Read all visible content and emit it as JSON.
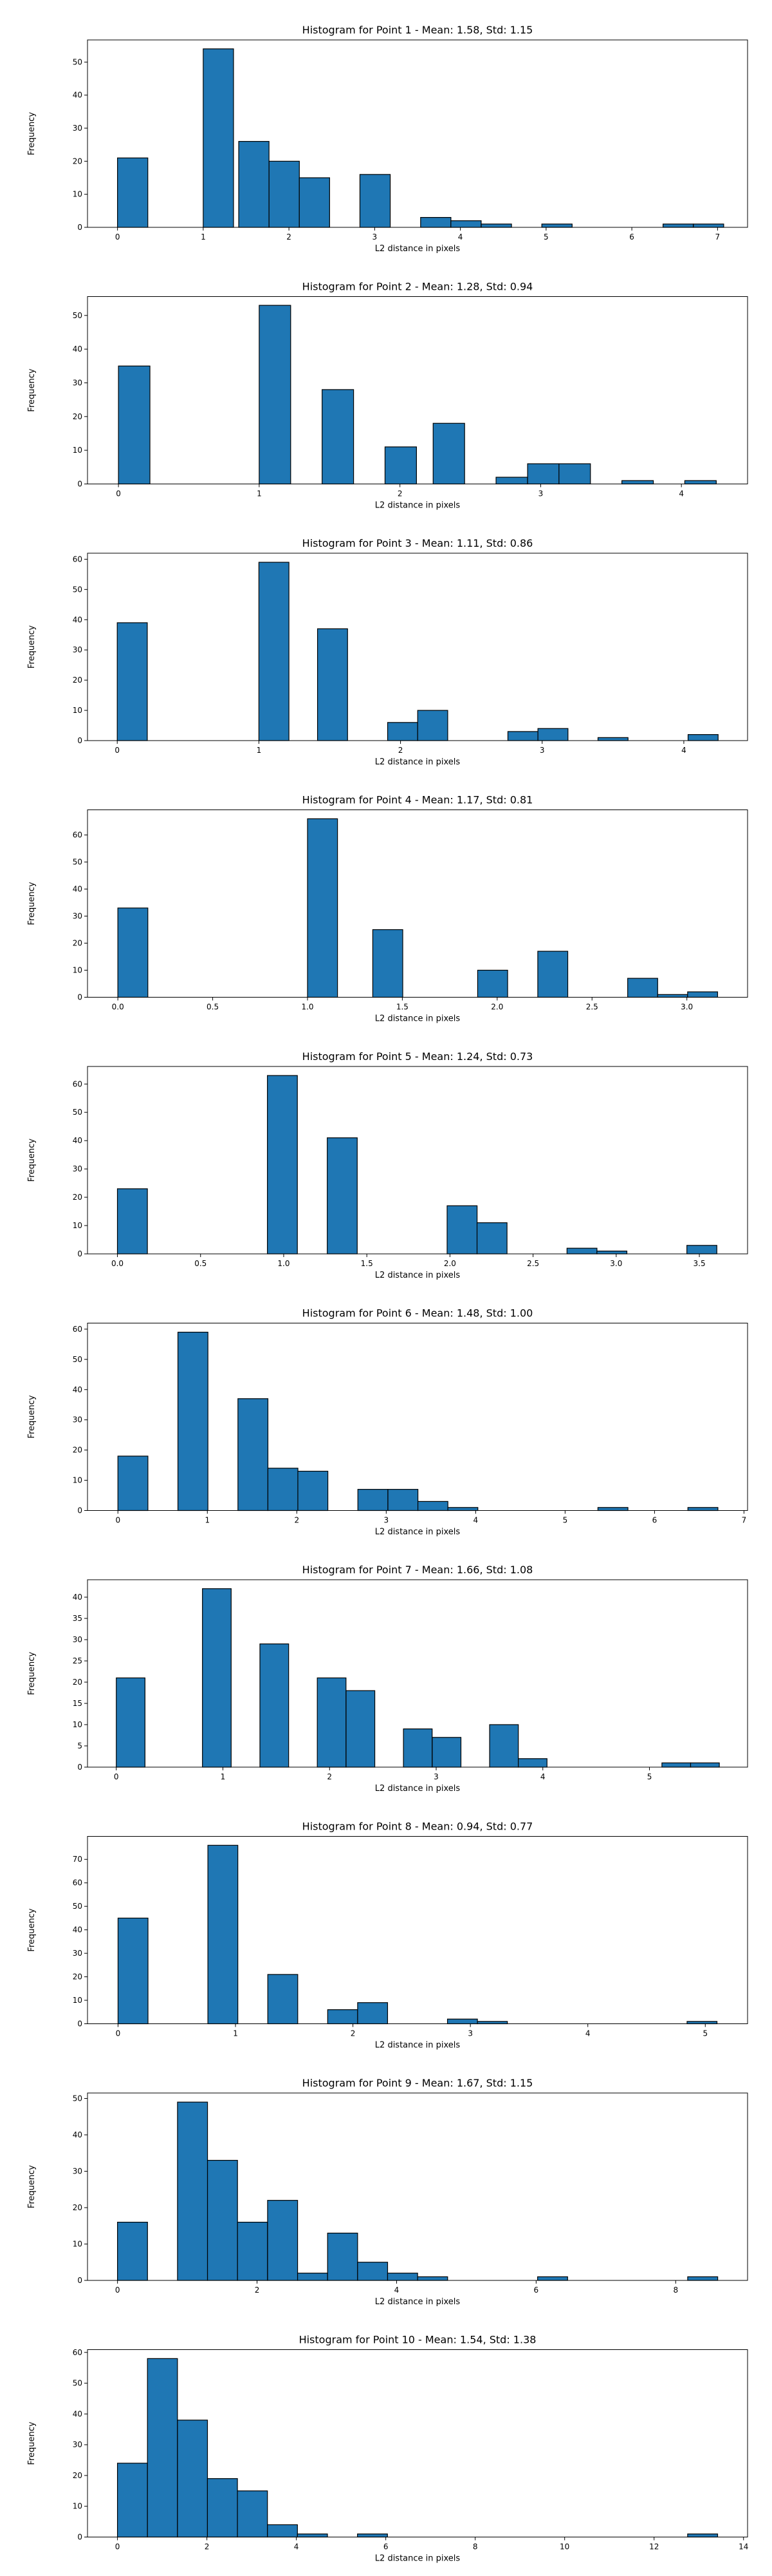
{
  "chart_data": [
    {
      "type": "bar",
      "title": "Histogram for Point 1 - Mean: 1.58, Std: 1.15",
      "xlabel": "L2 distance in pixels",
      "ylabel": "Frequency",
      "bin_width": 0.3535,
      "bins": [
        [
          0,
          21
        ],
        [
          1.0,
          54
        ],
        [
          1.414,
          26
        ],
        [
          1.768,
          20
        ],
        [
          2.121,
          15
        ],
        [
          2.828,
          16
        ],
        [
          3.536,
          3
        ],
        [
          3.889,
          2
        ],
        [
          4.243,
          1
        ],
        [
          4.95,
          1
        ],
        [
          6.364,
          1
        ],
        [
          6.718,
          1
        ]
      ],
      "xlim": [
        -0.35,
        7.35
      ],
      "ylim": [
        0,
        56.7
      ],
      "xticks": [
        0,
        1,
        2,
        3,
        4,
        5,
        6,
        7
      ],
      "xtick_labels": [
        "0",
        "1",
        "2",
        "3",
        "4",
        "5",
        "6",
        "7"
      ],
      "yticks": [
        0,
        10,
        20,
        30,
        40,
        50
      ],
      "ytick_labels": [
        "0",
        "10",
        "20",
        "30",
        "40",
        "50"
      ]
    },
    {
      "type": "bar",
      "title": "Histogram for Point 2 - Mean: 1.28, Std: 0.94",
      "xlabel": "L2 distance in pixels",
      "ylabel": "Frequency",
      "bin_width": 0.2236,
      "bins": [
        [
          0,
          35
        ],
        [
          1.0,
          53
        ],
        [
          1.447,
          28
        ],
        [
          1.894,
          11
        ],
        [
          2.236,
          18
        ],
        [
          2.683,
          2
        ],
        [
          2.907,
          6
        ],
        [
          3.13,
          6
        ],
        [
          3.577,
          1
        ],
        [
          4.024,
          1
        ]
      ],
      "xlim": [
        -0.22,
        4.47
      ],
      "ylim": [
        0,
        55.6
      ],
      "xticks": [
        0,
        1,
        2,
        3,
        4
      ],
      "xtick_labels": [
        "0",
        "1",
        "2",
        "3",
        "4"
      ],
      "yticks": [
        0,
        10,
        20,
        30,
        40,
        50
      ],
      "ytick_labels": [
        "0",
        "10",
        "20",
        "30",
        "40",
        "50"
      ]
    },
    {
      "type": "bar",
      "title": "Histogram for Point 3 - Mean: 1.11, Std: 0.86",
      "xlabel": "L2 distance in pixels",
      "ylabel": "Frequency",
      "bin_width": 0.2121,
      "bins": [
        [
          0,
          39
        ],
        [
          1.0,
          59
        ],
        [
          1.414,
          37
        ],
        [
          1.909,
          6
        ],
        [
          2.121,
          10
        ],
        [
          2.758,
          3
        ],
        [
          2.97,
          4
        ],
        [
          3.394,
          1
        ],
        [
          4.03,
          2
        ]
      ],
      "xlim": [
        -0.21,
        4.45
      ],
      "ylim": [
        0,
        62
      ],
      "xticks": [
        0,
        1,
        2,
        3,
        4
      ],
      "xtick_labels": [
        "0",
        "1",
        "2",
        "3",
        "4"
      ],
      "yticks": [
        0,
        10,
        20,
        30,
        40,
        50,
        60
      ],
      "ytick_labels": [
        "0",
        "10",
        "20",
        "30",
        "40",
        "50",
        "60"
      ]
    },
    {
      "type": "bar",
      "title": "Histogram for Point 4 - Mean: 1.17, Std: 0.81",
      "xlabel": "L2 distance in pixels",
      "ylabel": "Frequency",
      "bin_width": 0.1581,
      "bins": [
        [
          0,
          33
        ],
        [
          1.0,
          66
        ],
        [
          1.344,
          25
        ],
        [
          1.897,
          10
        ],
        [
          2.214,
          17
        ],
        [
          2.688,
          7
        ],
        [
          2.846,
          1
        ],
        [
          3.004,
          2
        ]
      ],
      "xlim": [
        -0.16,
        3.32
      ],
      "ylim": [
        0,
        69.3
      ],
      "xticks": [
        0.0,
        0.5,
        1.0,
        1.5,
        2.0,
        2.5,
        3.0
      ],
      "xtick_labels": [
        "0.0",
        "0.5",
        "1.0",
        "1.5",
        "2.0",
        "2.5",
        "3.0"
      ],
      "yticks": [
        0,
        10,
        20,
        30,
        40,
        50,
        60
      ],
      "ytick_labels": [
        "0",
        "10",
        "20",
        "30",
        "40",
        "50",
        "60"
      ]
    },
    {
      "type": "bar",
      "title": "Histogram for Point 5 - Mean: 1.24, Std: 0.73",
      "xlabel": "L2 distance in pixels",
      "ylabel": "Frequency",
      "bin_width": 0.1803,
      "bins": [
        [
          0,
          23
        ],
        [
          0.902,
          63
        ],
        [
          1.262,
          41
        ],
        [
          1.983,
          17
        ],
        [
          2.163,
          11
        ],
        [
          2.704,
          2
        ],
        [
          2.884,
          1
        ],
        [
          3.425,
          3
        ]
      ],
      "xlim": [
        -0.18,
        3.79
      ],
      "ylim": [
        0,
        66.2
      ],
      "xticks": [
        0.0,
        0.5,
        1.0,
        1.5,
        2.0,
        2.5,
        3.0,
        3.5
      ],
      "xtick_labels": [
        "0.0",
        "0.5",
        "1.0",
        "1.5",
        "2.0",
        "2.5",
        "3.0",
        "3.5"
      ],
      "yticks": [
        0,
        10,
        20,
        30,
        40,
        50,
        60
      ],
      "ytick_labels": [
        "0",
        "10",
        "20",
        "30",
        "40",
        "50",
        "60"
      ]
    },
    {
      "type": "bar",
      "title": "Histogram for Point 6 - Mean: 1.48, Std: 1.00",
      "xlabel": "L2 distance in pixels",
      "ylabel": "Frequency",
      "bin_width": 0.3354,
      "bins": [
        [
          0,
          18
        ],
        [
          0.671,
          59
        ],
        [
          1.342,
          37
        ],
        [
          1.677,
          14
        ],
        [
          2.012,
          13
        ],
        [
          2.683,
          7
        ],
        [
          3.019,
          7
        ],
        [
          3.354,
          3
        ],
        [
          3.689,
          1
        ],
        [
          5.367,
          1
        ],
        [
          6.373,
          1
        ]
      ],
      "xlim": [
        -0.34,
        7.04
      ],
      "ylim": [
        0,
        62
      ],
      "xticks": [
        0,
        1,
        2,
        3,
        4,
        5,
        6,
        7
      ],
      "xtick_labels": [
        "0",
        "1",
        "2",
        "3",
        "4",
        "5",
        "6",
        "7"
      ],
      "yticks": [
        0,
        10,
        20,
        30,
        40,
        50,
        60
      ],
      "ytick_labels": [
        "0",
        "10",
        "20",
        "30",
        "40",
        "50",
        "60"
      ]
    },
    {
      "type": "bar",
      "title": "Histogram for Point 7 - Mean: 1.66, Std: 1.08",
      "xlabel": "L2 distance in pixels",
      "ylabel": "Frequency",
      "bin_width": 0.2693,
      "bins": [
        [
          0,
          21
        ],
        [
          0.808,
          42
        ],
        [
          1.347,
          29
        ],
        [
          1.885,
          21
        ],
        [
          2.155,
          18
        ],
        [
          2.693,
          9
        ],
        [
          2.963,
          7
        ],
        [
          3.501,
          10
        ],
        [
          3.77,
          2
        ],
        [
          5.117,
          1
        ],
        [
          5.386,
          1
        ]
      ],
      "xlim": [
        -0.27,
        5.92
      ],
      "ylim": [
        0,
        44.1
      ],
      "xticks": [
        0,
        1,
        2,
        3,
        4,
        5
      ],
      "xtick_labels": [
        "0",
        "1",
        "2",
        "3",
        "4",
        "5"
      ],
      "yticks": [
        0,
        5,
        10,
        15,
        20,
        25,
        30,
        35,
        40
      ],
      "ytick_labels": [
        "0",
        "5",
        "10",
        "15",
        "20",
        "25",
        "30",
        "35",
        "40"
      ]
    },
    {
      "type": "bar",
      "title": "Histogram for Point 8 - Mean: 0.94, Std: 0.77",
      "xlabel": "L2 distance in pixels",
      "ylabel": "Frequency",
      "bin_width": 0.255,
      "bins": [
        [
          0,
          45
        ],
        [
          0.765,
          76
        ],
        [
          1.275,
          21
        ],
        [
          1.785,
          6
        ],
        [
          2.04,
          9
        ],
        [
          2.805,
          2
        ],
        [
          3.06,
          1
        ],
        [
          4.845,
          1
        ]
      ],
      "xlim": [
        -0.26,
        5.36
      ],
      "ylim": [
        0,
        79.8
      ],
      "xticks": [
        0,
        1,
        2,
        3,
        4,
        5
      ],
      "xtick_labels": [
        "0",
        "1",
        "2",
        "3",
        "4",
        "5"
      ],
      "yticks": [
        0,
        10,
        20,
        30,
        40,
        50,
        60,
        70
      ],
      "ytick_labels": [
        "0",
        "10",
        "20",
        "30",
        "40",
        "50",
        "60",
        "70"
      ]
    },
    {
      "type": "bar",
      "title": "Histogram for Point 9 - Mean: 1.67, Std: 1.15",
      "xlabel": "L2 distance in pixels",
      "ylabel": "Frequency",
      "bin_width": 0.4301,
      "bins": [
        [
          0,
          16
        ],
        [
          0.86,
          49
        ],
        [
          1.29,
          33
        ],
        [
          1.72,
          16
        ],
        [
          2.151,
          22
        ],
        [
          2.581,
          2
        ],
        [
          3.011,
          13
        ],
        [
          3.441,
          5
        ],
        [
          3.871,
          2
        ],
        [
          4.301,
          1
        ],
        [
          6.021,
          1
        ],
        [
          8.172,
          1
        ]
      ],
      "xlim": [
        -0.43,
        9.03
      ],
      "ylim": [
        0,
        51.5
      ],
      "xticks": [
        0,
        2,
        4,
        6,
        8
      ],
      "xtick_labels": [
        "0",
        "2",
        "4",
        "6",
        "8"
      ],
      "yticks": [
        0,
        10,
        20,
        30,
        40,
        50
      ],
      "ytick_labels": [
        "0",
        "10",
        "20",
        "30",
        "40",
        "50"
      ]
    },
    {
      "type": "bar",
      "title": "Histogram for Point 10 - Mean: 1.54, Std: 1.38",
      "xlabel": "L2 distance in pixels",
      "ylabel": "Frequency",
      "bin_width": 0.6708,
      "bins": [
        [
          0,
          24
        ],
        [
          0.671,
          58
        ],
        [
          1.342,
          38
        ],
        [
          2.012,
          19
        ],
        [
          2.683,
          15
        ],
        [
          3.354,
          4
        ],
        [
          4.025,
          1
        ],
        [
          5.367,
          1
        ],
        [
          12.75,
          1
        ]
      ],
      "xlim": [
        -0.67,
        14.09
      ],
      "ylim": [
        0,
        60.9
      ],
      "xticks": [
        0,
        2,
        4,
        6,
        8,
        10,
        12,
        14
      ],
      "xtick_labels": [
        "0",
        "2",
        "4",
        "6",
        "8",
        "10",
        "12",
        "14"
      ],
      "yticks": [
        0,
        10,
        20,
        30,
        40,
        50,
        60
      ],
      "ytick_labels": [
        "0",
        "10",
        "20",
        "30",
        "40",
        "50",
        "60"
      ]
    }
  ],
  "colors": {
    "bar_fill": "#1f77b4",
    "bar_edge": "#000000",
    "axis": "#000000",
    "background": "#ffffff"
  }
}
